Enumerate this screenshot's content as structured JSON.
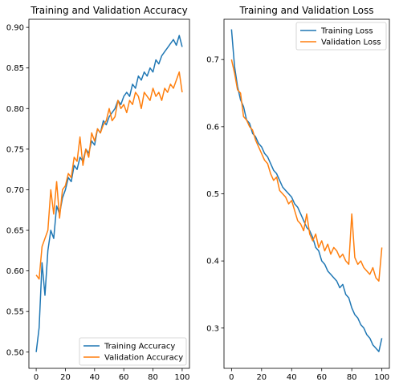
{
  "chart_data": [
    {
      "type": "line",
      "title": "Training and Validation Accuracy",
      "xlabel": "",
      "ylabel": "",
      "xlim": [
        -5,
        105
      ],
      "ylim": [
        0.48,
        0.91
      ],
      "xticks": [
        0,
        20,
        40,
        60,
        80,
        100
      ],
      "yticks": [
        0.5,
        0.55,
        0.6,
        0.65,
        0.7,
        0.75,
        0.8,
        0.85,
        0.9
      ],
      "ytick_labels": [
        "0.50",
        "0.55",
        "0.60",
        "0.65",
        "0.70",
        "0.75",
        "0.80",
        "0.85",
        "0.90"
      ],
      "legend_position": "lower-right",
      "series": [
        {
          "name": "Training Accuracy",
          "color": "#1f77b4",
          "x": [
            0,
            2,
            4,
            6,
            8,
            10,
            12,
            14,
            16,
            18,
            20,
            22,
            24,
            26,
            28,
            30,
            32,
            34,
            36,
            38,
            40,
            42,
            44,
            46,
            48,
            50,
            52,
            54,
            56,
            58,
            60,
            62,
            64,
            66,
            68,
            70,
            72,
            74,
            76,
            78,
            80,
            82,
            84,
            86,
            88,
            90,
            92,
            94,
            96,
            98,
            100
          ],
          "y": [
            0.5,
            0.53,
            0.61,
            0.57,
            0.625,
            0.65,
            0.64,
            0.68,
            0.67,
            0.69,
            0.7,
            0.715,
            0.71,
            0.73,
            0.725,
            0.74,
            0.735,
            0.75,
            0.745,
            0.76,
            0.755,
            0.775,
            0.77,
            0.785,
            0.78,
            0.79,
            0.795,
            0.8,
            0.81,
            0.805,
            0.815,
            0.82,
            0.815,
            0.83,
            0.825,
            0.84,
            0.835,
            0.845,
            0.84,
            0.85,
            0.845,
            0.86,
            0.855,
            0.865,
            0.87,
            0.875,
            0.88,
            0.885,
            0.878,
            0.89,
            0.876
          ]
        },
        {
          "name": "Validation Accuracy",
          "color": "#ff7f0e",
          "x": [
            0,
            2,
            4,
            6,
            8,
            10,
            12,
            14,
            16,
            18,
            20,
            22,
            24,
            26,
            28,
            30,
            32,
            34,
            36,
            38,
            40,
            42,
            44,
            46,
            48,
            50,
            52,
            54,
            56,
            58,
            60,
            62,
            64,
            66,
            68,
            70,
            72,
            74,
            76,
            78,
            80,
            82,
            84,
            86,
            88,
            90,
            92,
            94,
            96,
            98,
            100
          ],
          "y": [
            0.595,
            0.59,
            0.63,
            0.64,
            0.65,
            0.7,
            0.67,
            0.71,
            0.665,
            0.7,
            0.705,
            0.72,
            0.715,
            0.74,
            0.735,
            0.765,
            0.73,
            0.75,
            0.74,
            0.77,
            0.76,
            0.775,
            0.77,
            0.78,
            0.785,
            0.8,
            0.785,
            0.79,
            0.81,
            0.8,
            0.805,
            0.795,
            0.81,
            0.805,
            0.82,
            0.815,
            0.8,
            0.82,
            0.815,
            0.81,
            0.825,
            0.815,
            0.82,
            0.81,
            0.825,
            0.82,
            0.83,
            0.825,
            0.835,
            0.845,
            0.82
          ]
        }
      ]
    },
    {
      "type": "line",
      "title": "Training and Validation Loss",
      "xlabel": "",
      "ylabel": "",
      "xlim": [
        -5,
        105
      ],
      "ylim": [
        0.24,
        0.76
      ],
      "xticks": [
        0,
        20,
        40,
        60,
        80,
        100
      ],
      "yticks": [
        0.3,
        0.4,
        0.5,
        0.6,
        0.7
      ],
      "ytick_labels": [
        "0.3",
        "0.4",
        "0.5",
        "0.6",
        "0.7"
      ],
      "legend_position": "upper-right",
      "series": [
        {
          "name": "Training Loss",
          "color": "#1f77b4",
          "x": [
            0,
            2,
            4,
            6,
            8,
            10,
            12,
            14,
            16,
            18,
            20,
            22,
            24,
            26,
            28,
            30,
            32,
            34,
            36,
            38,
            40,
            42,
            44,
            46,
            48,
            50,
            52,
            54,
            56,
            58,
            60,
            62,
            64,
            66,
            68,
            70,
            72,
            74,
            76,
            78,
            80,
            82,
            84,
            86,
            88,
            90,
            92,
            94,
            96,
            98,
            100
          ],
          "y": [
            0.745,
            0.69,
            0.66,
            0.64,
            0.63,
            0.61,
            0.605,
            0.59,
            0.585,
            0.575,
            0.57,
            0.56,
            0.555,
            0.545,
            0.535,
            0.53,
            0.52,
            0.51,
            0.505,
            0.5,
            0.495,
            0.485,
            0.48,
            0.47,
            0.46,
            0.45,
            0.445,
            0.435,
            0.42,
            0.415,
            0.4,
            0.395,
            0.385,
            0.38,
            0.375,
            0.37,
            0.36,
            0.365,
            0.35,
            0.345,
            0.33,
            0.32,
            0.315,
            0.305,
            0.3,
            0.29,
            0.285,
            0.275,
            0.27,
            0.265,
            0.285
          ]
        },
        {
          "name": "Validation Loss",
          "color": "#ff7f0e",
          "x": [
            0,
            2,
            4,
            6,
            8,
            10,
            12,
            14,
            16,
            18,
            20,
            22,
            24,
            26,
            28,
            30,
            32,
            34,
            36,
            38,
            40,
            42,
            44,
            46,
            48,
            50,
            52,
            54,
            56,
            58,
            60,
            62,
            64,
            66,
            68,
            70,
            72,
            74,
            76,
            78,
            80,
            82,
            84,
            86,
            88,
            90,
            92,
            94,
            96,
            98,
            100
          ],
          "y": [
            0.7,
            0.68,
            0.655,
            0.65,
            0.615,
            0.61,
            0.6,
            0.595,
            0.58,
            0.57,
            0.56,
            0.55,
            0.545,
            0.53,
            0.52,
            0.525,
            0.505,
            0.5,
            0.495,
            0.485,
            0.49,
            0.475,
            0.46,
            0.455,
            0.445,
            0.47,
            0.44,
            0.43,
            0.44,
            0.42,
            0.43,
            0.415,
            0.425,
            0.41,
            0.42,
            0.415,
            0.405,
            0.41,
            0.4,
            0.395,
            0.47,
            0.405,
            0.395,
            0.4,
            0.39,
            0.385,
            0.38,
            0.39,
            0.375,
            0.37,
            0.42
          ]
        }
      ]
    }
  ]
}
